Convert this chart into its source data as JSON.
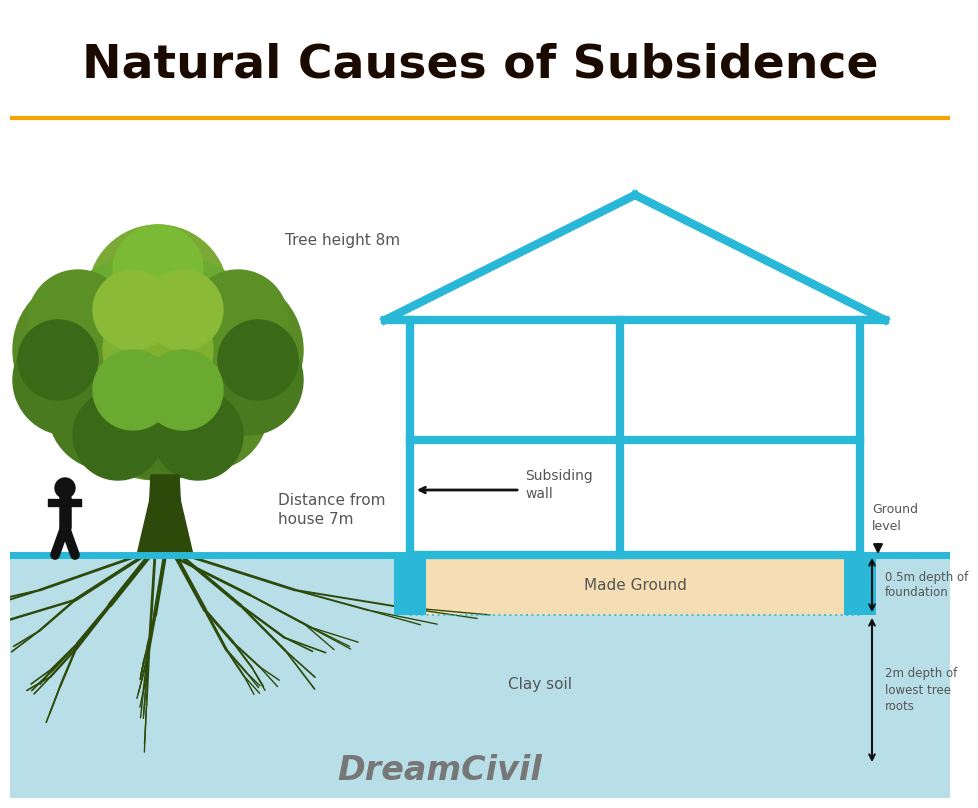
{
  "title": "Natural Causes of Subsidence",
  "title_color": "#1a0a00",
  "title_fontsize": 34,
  "bg_color": "#ffffff",
  "orange_line_color": "#f0a500",
  "cyan_color": "#29b8d8",
  "soil_color": "#b8dfe8",
  "made_ground_color": "#f5deb3",
  "tree_trunk_color": "#2d4a0a",
  "root_color": "#2d4a0a",
  "text_color": "#555555",
  "annotations": {
    "tree_height": "Tree height 8m",
    "distance": "Distance from\nhouse 7m",
    "subsiding_wall": "Subsiding\nwall",
    "ground_level": "Ground\nlevel",
    "foundation_depth": "0.5m depth of\nfoundation",
    "root_depth": "2m depth of\nlowest tree\nroots",
    "made_ground": "Made Ground",
    "clay_soil": "Clay soil",
    "dreamcivil": "DreamCivil"
  }
}
